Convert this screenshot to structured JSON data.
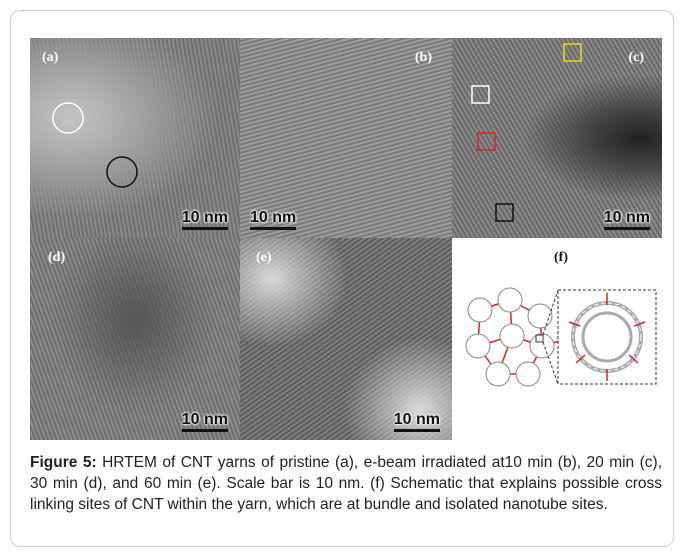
{
  "panels": [
    {
      "label": "(a)",
      "scale_bar": "10 nm"
    },
    {
      "label": "(b)",
      "scale_bar": "10 nm"
    },
    {
      "label": "(c)",
      "scale_bar": "10 nm"
    },
    {
      "label": "(d)",
      "scale_bar": "10 nm"
    },
    {
      "label": "(e)",
      "scale_bar": "10 nm"
    },
    {
      "label": "(f)"
    }
  ],
  "caption": {
    "label": "Figure 5:",
    "text": "HRTEM of CNT yarns of pristine (a), e-beam irradiated at10 min (b), 20 min (c), 30 min (d), and 60 min (e). Scale bar is 10 nm. (f) Schematic that explains possible cross linking sites of CNT within the yarn, which are at bundle and isolated nanotube sites."
  }
}
